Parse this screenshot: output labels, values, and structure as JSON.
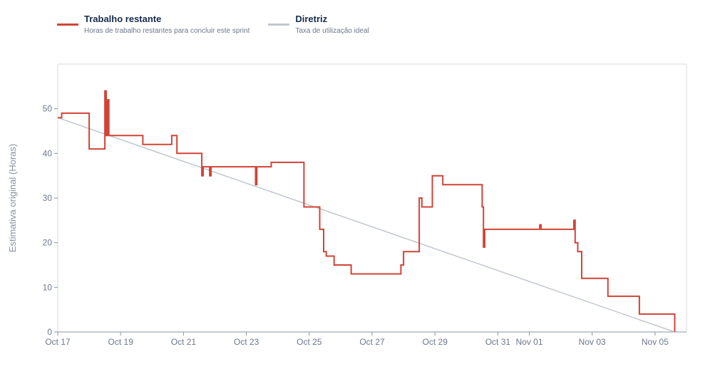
{
  "legend": {
    "items": [
      {
        "name": "Trabalho restante",
        "desc": "Horas de trabalho restantes para concluir este sprint",
        "color": "#d04437"
      },
      {
        "name": "Diretriz",
        "desc": "Taxa de utilização ideal",
        "color": "#c1c7d0"
      }
    ]
  },
  "chart_data": {
    "type": "line",
    "title": "",
    "ylabel": "Estimativa original (Horas)",
    "xlabel": "",
    "x_domain": [
      "Oct 17 00:00",
      "Nov 06 00:00"
    ],
    "ylim": [
      0,
      60
    ],
    "y_ticks": [
      0,
      10,
      20,
      30,
      40,
      50
    ],
    "x_ticks": [
      {
        "label": "Oct 17",
        "date": "Oct 17"
      },
      {
        "label": "Oct 19",
        "date": "Oct 19"
      },
      {
        "label": "Oct 21",
        "date": "Oct 21"
      },
      {
        "label": "Oct 23",
        "date": "Oct 23"
      },
      {
        "label": "Oct 25",
        "date": "Oct 25"
      },
      {
        "label": "Oct 27",
        "date": "Oct 27"
      },
      {
        "label": "Oct 29",
        "date": "Oct 29"
      },
      {
        "label": "Oct 31",
        "date": "Oct 31"
      },
      {
        "label": "Nov 01",
        "date": "Nov 01"
      },
      {
        "label": "Nov 03",
        "date": "Nov 03"
      },
      {
        "label": "Nov 05",
        "date": "Nov 05"
      }
    ],
    "grid": false,
    "legend_position": "top-left",
    "series": [
      {
        "name": "Trabalho restante",
        "color": "#d04437",
        "step": true,
        "points": [
          [
            "Oct 17 00:00",
            48
          ],
          [
            "Oct 17 03:00",
            49
          ],
          [
            "Oct 18 00:00",
            41
          ],
          [
            "Oct 18 12:00",
            41
          ],
          [
            "Oct 18 12:00",
            54
          ],
          [
            "Oct 18 13:00",
            44
          ],
          [
            "Oct 18 14:00",
            52
          ],
          [
            "Oct 18 15:00",
            44
          ],
          [
            "Oct 19 17:00",
            42
          ],
          [
            "Oct 20 15:00",
            44
          ],
          [
            "Oct 20 19:00",
            40
          ],
          [
            "Oct 21 14:00",
            35
          ],
          [
            "Oct 21 15:00",
            37
          ],
          [
            "Oct 21 20:00",
            35
          ],
          [
            "Oct 21 21:00",
            37
          ],
          [
            "Oct 23 07:00",
            33
          ],
          [
            "Oct 23 08:00",
            37
          ],
          [
            "Oct 23 19:00",
            38
          ],
          [
            "Oct 24 20:00",
            28
          ],
          [
            "Oct 25 08:00",
            23
          ],
          [
            "Oct 25 11:00",
            18
          ],
          [
            "Oct 25 13:00",
            17
          ],
          [
            "Oct 25 19:00",
            15
          ],
          [
            "Oct 26 08:00",
            13
          ],
          [
            "Oct 27 22:00",
            15
          ],
          [
            "Oct 28 00:00",
            18
          ],
          [
            "Oct 28 12:00",
            30
          ],
          [
            "Oct 28 14:00",
            28
          ],
          [
            "Oct 28 22:00",
            35
          ],
          [
            "Oct 29 06:00",
            33
          ],
          [
            "Oct 30 12:00",
            28
          ],
          [
            "Oct 30 13:00",
            19
          ],
          [
            "Oct 30 14:00",
            23
          ],
          [
            "Nov 01 08:00",
            24
          ],
          [
            "Nov 01 09:00",
            23
          ],
          [
            "Nov 02 10:00",
            25
          ],
          [
            "Nov 02 11:00",
            20
          ],
          [
            "Nov 02 13:00",
            18
          ],
          [
            "Nov 02 16:00",
            12
          ],
          [
            "Nov 03 12:00",
            8
          ],
          [
            "Nov 04 12:00",
            4
          ],
          [
            "Nov 05 15:00",
            0
          ]
        ]
      },
      {
        "name": "Diretriz",
        "color": "#c1c7d0",
        "step": false,
        "points": [
          [
            "Oct 17 00:00",
            48
          ],
          [
            "Nov 05 15:00",
            0
          ]
        ]
      }
    ]
  }
}
